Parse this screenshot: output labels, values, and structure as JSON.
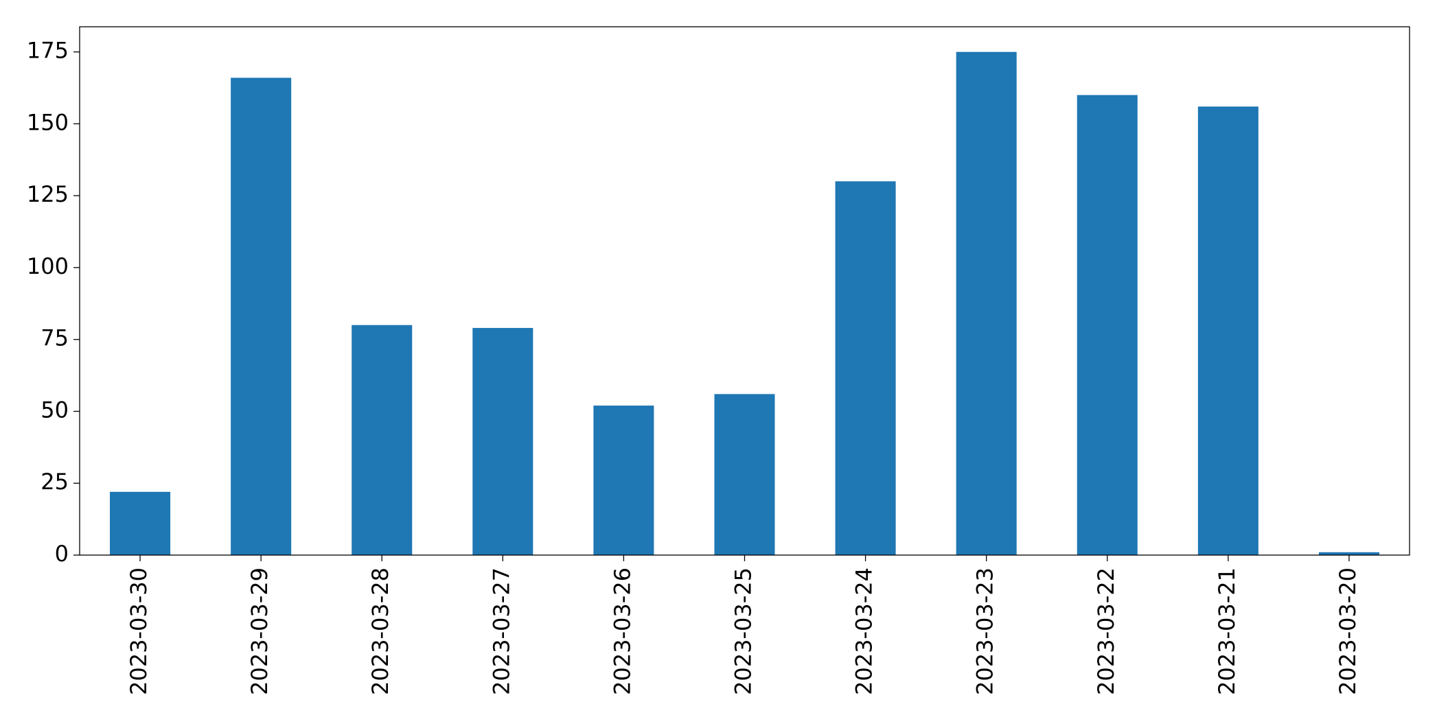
{
  "chart_data": {
    "type": "bar",
    "categories": [
      "2023-03-30",
      "2023-03-29",
      "2023-03-28",
      "2023-03-27",
      "2023-03-26",
      "2023-03-25",
      "2023-03-24",
      "2023-03-23",
      "2023-03-22",
      "2023-03-21",
      "2023-03-20"
    ],
    "values": [
      22,
      166,
      80,
      79,
      52,
      56,
      130,
      175,
      160,
      156,
      1
    ],
    "color": "#1f77b4",
    "ylim": [
      0,
      183.75
    ],
    "yticks": [
      0,
      25,
      50,
      75,
      100,
      125,
      150,
      175
    ],
    "grid": false
  }
}
